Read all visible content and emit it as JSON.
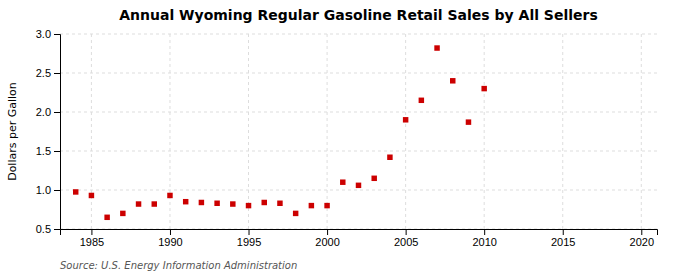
{
  "chart_data": {
    "type": "scatter",
    "title": "Annual Wyoming Regular Gasoline Retail Sales by All Sellers",
    "ylabel": "Dollars per Gallon",
    "annotations": [
      "Source: U.S. Energy Information Administration"
    ],
    "x": [
      1984,
      1985,
      1986,
      1987,
      1988,
      1989,
      1990,
      1991,
      1992,
      1993,
      1994,
      1995,
      1996,
      1997,
      1998,
      1999,
      2000,
      2001,
      2002,
      2003,
      2004,
      2005,
      2006,
      2007,
      2008,
      2009,
      2010
    ],
    "values": [
      0.975,
      0.93,
      0.65,
      0.7,
      0.82,
      0.82,
      0.93,
      0.85,
      0.84,
      0.83,
      0.82,
      0.8,
      0.84,
      0.83,
      0.7,
      0.8,
      0.8,
      1.1,
      1.06,
      1.15,
      1.42,
      1.9,
      2.15,
      2.82,
      2.4,
      1.87,
      2.3
    ],
    "color": "#cc0000",
    "marker": "square",
    "xlim": [
      1983,
      2021
    ],
    "ylim": [
      0.5,
      3.0
    ],
    "xticks": [
      1985,
      1990,
      1995,
      2000,
      2005,
      2010,
      2015,
      2020
    ],
    "yticks": [
      0.5,
      {
        "value": 1.0,
        "label": "1.0"
      },
      1.5,
      {
        "value": 2.0,
        "label": "2.0"
      },
      2.5,
      {
        "value": 3.0,
        "label": "3.0"
      }
    ],
    "grid": true
  }
}
